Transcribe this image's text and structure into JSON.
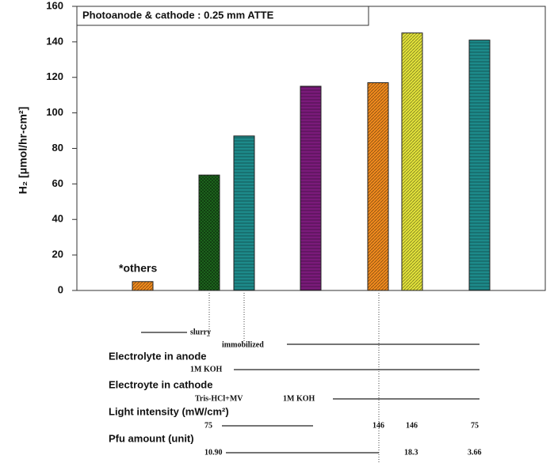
{
  "chart_data": {
    "type": "bar",
    "title": "Photoanode & cathode : 0.25 mm ATTE",
    "y_label": "H₂ [μmol/hr-cm²]",
    "values": [
      5,
      65,
      87,
      115,
      117,
      145,
      141
    ],
    "colors": [
      "#f08a1e",
      "#1e6b1e",
      "#1d8a8a",
      "#7a1a7a",
      "#f08a1e",
      "#e2e23a",
      "#1d8a8a"
    ],
    "ylim": [
      0,
      160
    ],
    "yticks": [
      0,
      20,
      40,
      60,
      80,
      100,
      120,
      140,
      160
    ],
    "annotation": "*others",
    "table": [
      "slurry",
      "immobilized",
      "Electrolyte in anode",
      "1M KOH",
      "Electroyte in cathode",
      "Tris-HCl+MV",
      "1M KOH",
      "Light intensity (mW/cm²)",
      "75",
      "146",
      "146",
      "75",
      "Pfu amount (unit)",
      "10.90",
      "18.3",
      "3.66"
    ]
  }
}
